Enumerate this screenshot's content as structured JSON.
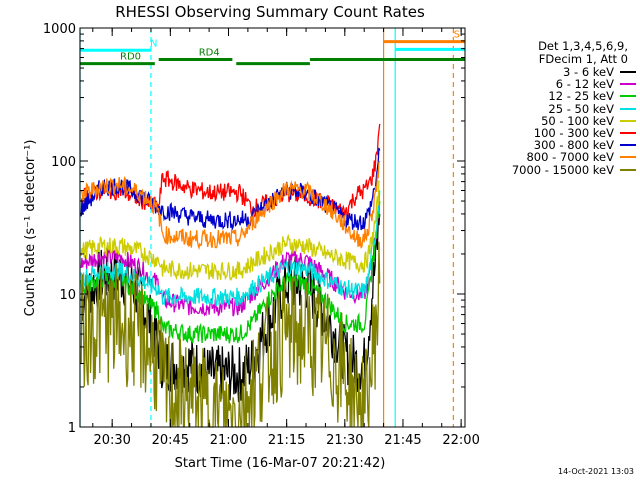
{
  "chart_data": {
    "type": "line",
    "title": "RHESSI Observing Summary Count Rates",
    "xlabel": "Start Time (16-Mar-07 20:21:42)",
    "ylabel": "Count Rate (s⁻¹ detector⁻¹)",
    "yscale": "log",
    "ylim": [
      1,
      1000
    ],
    "xlim": [
      "20:21:42",
      "22:01"
    ],
    "x_ticks": [
      "20:30",
      "20:45",
      "21:00",
      "21:15",
      "21:30",
      "21:45",
      "22:00"
    ],
    "y_ticks": [
      "1",
      "10",
      "100",
      "1000"
    ],
    "legend_header": [
      "Det 1,3,4,5,6,9,",
      "FDecim 1, Att 0"
    ],
    "legend_position": "right",
    "series": [
      {
        "name": "3 - 6 keV",
        "color": "#000000",
        "x": [
          "20:22",
          "20:27",
          "20:32",
          "20:37",
          "20:40",
          "20:42",
          "20:43",
          "20:50",
          "20:55",
          "21:00",
          "21:03",
          "21:06",
          "21:10",
          "21:15",
          "21:20",
          "21:25",
          "21:30",
          "21:33",
          "21:35",
          "21:36",
          "21:37",
          "21:38",
          "21:39"
        ],
        "y": [
          9,
          13.5,
          14,
          10,
          6,
          4,
          3,
          3,
          2.5,
          2.5,
          2.5,
          3,
          6,
          12,
          12,
          7,
          3.5,
          3,
          3,
          5,
          10,
          18,
          40
        ]
      },
      {
        "name": "6 - 12 keV",
        "color": "#cc00cc",
        "x": [
          "20:22",
          "20:27",
          "20:32",
          "20:37",
          "20:40",
          "20:42",
          "20:43",
          "20:50",
          "20:55",
          "21:00",
          "21:03",
          "21:06",
          "21:10",
          "21:15",
          "21:20",
          "21:25",
          "21:30",
          "21:33",
          "21:35",
          "21:36",
          "21:37",
          "21:38",
          "21:39"
        ],
        "y": [
          17,
          19,
          19,
          16,
          13,
          12,
          9,
          8,
          8,
          8,
          8,
          10,
          13,
          18.5,
          18,
          14,
          10.5,
          10,
          10,
          12,
          18,
          28,
          55
        ]
      },
      {
        "name": "12 - 25 keV",
        "color": "#00cc00",
        "x": [
          "20:22",
          "20:27",
          "20:32",
          "20:37",
          "20:40",
          "20:42",
          "20:43",
          "20:50",
          "20:55",
          "21:00",
          "21:03",
          "21:06",
          "21:10",
          "21:15",
          "21:20",
          "21:25",
          "21:30",
          "21:33",
          "21:35",
          "21:36",
          "21:37",
          "21:38",
          "21:39"
        ],
        "y": [
          11,
          13,
          13,
          10,
          8,
          7.5,
          5.5,
          5,
          5,
          5,
          5,
          6,
          9,
          12.5,
          12,
          9,
          6,
          6,
          6,
          9,
          16,
          26,
          50
        ]
      },
      {
        "name": "25 - 50 keV",
        "color": "#00e0e0",
        "x": [
          "20:22",
          "20:27",
          "20:32",
          "20:37",
          "20:40",
          "20:42",
          "20:43",
          "20:50",
          "20:55",
          "21:00",
          "21:03",
          "21:06",
          "21:10",
          "21:15",
          "21:20",
          "21:25",
          "21:30",
          "21:33",
          "21:35",
          "21:36",
          "21:37",
          "21:38",
          "21:39"
        ],
        "y": [
          13,
          15,
          15,
          13,
          11.5,
          11,
          9.5,
          9.5,
          9.5,
          9.5,
          9.5,
          11,
          13,
          16,
          15.5,
          13,
          11,
          10.5,
          10.5,
          13,
          20,
          30,
          60
        ]
      },
      {
        "name": "50 - 100 keV",
        "color": "#cccc00",
        "x": [
          "20:22",
          "20:27",
          "20:32",
          "20:37",
          "20:40",
          "20:42",
          "20:43",
          "20:50",
          "20:55",
          "21:00",
          "21:03",
          "21:06",
          "21:10",
          "21:15",
          "21:20",
          "21:25",
          "21:30",
          "21:33",
          "21:35",
          "21:36",
          "21:37",
          "21:38",
          "21:39"
        ],
        "y": [
          21,
          23,
          23,
          21,
          19,
          18,
          15.5,
          15,
          15,
          15,
          15,
          17,
          20,
          24,
          23,
          20,
          18,
          17,
          17,
          19,
          26,
          36,
          70
        ]
      },
      {
        "name": "100 - 300 keV",
        "color": "#ff0000",
        "x": [
          "20:22",
          "20:27",
          "20:32",
          "20:37",
          "20:40",
          "20:42",
          "20:43",
          "20:50",
          "20:55",
          "21:00",
          "21:03",
          "21:06",
          "21:10",
          "21:15",
          "21:20",
          "21:25",
          "21:30",
          "21:33",
          "21:35",
          "21:36",
          "21:37",
          "21:38",
          "21:39"
        ],
        "y": [
          53,
          60,
          60,
          52,
          47,
          45,
          75,
          62,
          58,
          58,
          58,
          44,
          48,
          57,
          55,
          48,
          41,
          56,
          60,
          65,
          75,
          100,
          190
        ]
      },
      {
        "name": "300 - 800 keV",
        "color": "#0000cc",
        "x": [
          "20:22",
          "20:27",
          "20:32",
          "20:37",
          "20:40",
          "20:42",
          "20:43",
          "20:50",
          "20:55",
          "21:00",
          "21:03",
          "21:06",
          "21:10",
          "21:15",
          "21:20",
          "21:25",
          "21:30",
          "21:33",
          "21:35",
          "21:36",
          "21:37",
          "21:38",
          "21:39"
        ],
        "y": [
          43,
          63,
          66,
          56,
          48,
          45,
          43,
          38,
          36,
          36,
          36,
          38,
          48,
          60,
          58,
          47,
          37,
          35,
          35,
          40,
          50,
          70,
          120
        ]
      },
      {
        "name": "800 - 7000 keV",
        "color": "#ff8000",
        "x": [
          "20:22",
          "20:27",
          "20:32",
          "20:37",
          "20:40",
          "20:42",
          "20:43",
          "20:50",
          "20:55",
          "21:00",
          "21:03",
          "21:06",
          "21:10",
          "21:15",
          "21:20",
          "21:25",
          "21:30",
          "21:33",
          "21:35",
          "21:36",
          "21:37",
          "21:38",
          "21:39"
        ],
        "y": [
          55,
          65,
          66,
          58,
          50,
          40,
          28,
          26,
          26,
          26,
          26,
          34,
          46,
          62,
          60,
          47,
          33,
          26,
          26,
          30,
          40,
          60,
          100
        ]
      },
      {
        "name": "7000 - 15000 keV",
        "color": "#808000",
        "x": [
          "20:22",
          "20:27",
          "20:32",
          "20:37",
          "20:40",
          "20:42",
          "20:43",
          "20:50",
          "20:55",
          "21:00",
          "21:03",
          "21:06",
          "21:10",
          "21:15",
          "21:20",
          "21:25",
          "21:30",
          "21:33",
          "21:35",
          "21:36",
          "21:37",
          "21:38",
          "21:39"
        ],
        "y": [
          5,
          6,
          6,
          5,
          4,
          3,
          2,
          1.6,
          1.3,
          1.2,
          1.3,
          2,
          3.5,
          5,
          5,
          4,
          2.5,
          1.5,
          1.3,
          1.6,
          3,
          6,
          12
        ]
      }
    ],
    "flags": [
      {
        "label": "RD0",
        "color": "#008000",
        "start": "20:21:42",
        "end": "20:41",
        "value": 540
      },
      {
        "label": "RD4",
        "color": "#008000",
        "start": "20:42",
        "end": "21:01",
        "value": 580
      },
      {
        "label": "",
        "color": "#008000",
        "start": "21:02",
        "end": "21:21",
        "value": 540
      },
      {
        "label": "",
        "color": "#008000",
        "start": "21:21",
        "end": "22:01",
        "value": 580
      },
      {
        "label": "N",
        "color": "#00ffff",
        "start": "20:21:42",
        "end": "20:40",
        "value": 680
      },
      {
        "label": "",
        "color": "#00ffff",
        "start": "21:43",
        "end": "22:01",
        "value": 690
      },
      {
        "label": "S",
        "color": "#ff8000",
        "start": "21:40",
        "end": "22:01",
        "value": 790
      }
    ],
    "vlines": [
      {
        "x": "20:21:42",
        "color": "#00ffff",
        "style": "solid"
      },
      {
        "x": "20:40",
        "color": "#00ffff",
        "style": "dashed"
      },
      {
        "x": "21:40",
        "color": "#ff8000",
        "style": "solid"
      },
      {
        "x": "21:43",
        "color": "#00ffff",
        "style": "solid"
      },
      {
        "x": "21:58",
        "color": "#ff8000",
        "style": "dashed"
      }
    ]
  },
  "footer_date": "14-Oct-2021 13:03"
}
